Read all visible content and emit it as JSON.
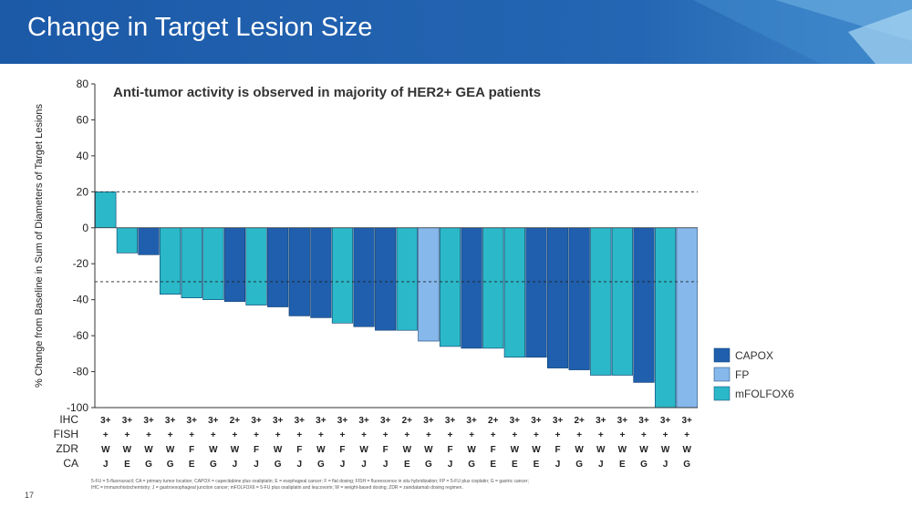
{
  "slide": {
    "title": "Change in Target Lesion Size",
    "page_number": "17",
    "footnote_line1": "5-FU = 5-fluorouracil; CA = primary tumor location; CAPOX = capecitabine plus oxaliplatin; E = esophageal cancer; F = flat dosing; FISH = fluorescence in situ hybridization; FP = 5-FU plus cisplatin; G = gastric cancer;",
    "footnote_line2": "IHC = immunohistochemistry; J = gastroesophageal junction cancer; mFOLFOX6 = 5-FU plus oxaliplatin and leucovorin; W = weight-based dosing; ZDR = zanidatamab dosing regimen."
  },
  "chart_data": {
    "type": "bar",
    "title": "Anti-tumor activity is observed in majority of HER2+ GEA patients",
    "ylabel": "% Change from Baseline in Sum of Diameters of Target Lesions",
    "xlabel": "",
    "ylim": [
      -100,
      80
    ],
    "yticks": [
      80,
      60,
      40,
      20,
      0,
      -20,
      -40,
      -60,
      -80,
      -100
    ],
    "reference_lines": [
      20,
      -30
    ],
    "colors": {
      "CAPOX": "#1f5fad",
      "FP": "#86b8ec",
      "mFOLFOX6": "#2bb8c8"
    },
    "legend": [
      "CAPOX",
      "FP",
      "mFOLFOX6"
    ],
    "legend_position": "bottom-right",
    "bars": [
      {
        "value": 20,
        "regimen": "mFOLFOX6",
        "IHC": "3+",
        "FISH": "+",
        "ZDR": "W",
        "CA": "J"
      },
      {
        "value": -14,
        "regimen": "mFOLFOX6",
        "IHC": "3+",
        "FISH": "+",
        "ZDR": "W",
        "CA": "E"
      },
      {
        "value": -15,
        "regimen": "CAPOX",
        "IHC": "3+",
        "FISH": "+",
        "ZDR": "W",
        "CA": "G"
      },
      {
        "value": -37,
        "regimen": "mFOLFOX6",
        "IHC": "3+",
        "FISH": "+",
        "ZDR": "W",
        "CA": "G"
      },
      {
        "value": -39,
        "regimen": "mFOLFOX6",
        "IHC": "3+",
        "FISH": "+",
        "ZDR": "F",
        "CA": "E"
      },
      {
        "value": -40,
        "regimen": "mFOLFOX6",
        "IHC": "3+",
        "FISH": "+",
        "ZDR": "W",
        "CA": "G"
      },
      {
        "value": -41,
        "regimen": "CAPOX",
        "IHC": "2+",
        "FISH": "+",
        "ZDR": "W",
        "CA": "J"
      },
      {
        "value": -43,
        "regimen": "mFOLFOX6",
        "IHC": "3+",
        "FISH": "+",
        "ZDR": "F",
        "CA": "J"
      },
      {
        "value": -44,
        "regimen": "CAPOX",
        "IHC": "3+",
        "FISH": "+",
        "ZDR": "W",
        "CA": "G"
      },
      {
        "value": -49,
        "regimen": "CAPOX",
        "IHC": "3+",
        "FISH": "+",
        "ZDR": "F",
        "CA": "J"
      },
      {
        "value": -50,
        "regimen": "CAPOX",
        "IHC": "3+",
        "FISH": "+",
        "ZDR": "W",
        "CA": "G"
      },
      {
        "value": -53,
        "regimen": "mFOLFOX6",
        "IHC": "3+",
        "FISH": "+",
        "ZDR": "F",
        "CA": "J"
      },
      {
        "value": -55,
        "regimen": "CAPOX",
        "IHC": "3+",
        "FISH": "+",
        "ZDR": "W",
        "CA": "J"
      },
      {
        "value": -57,
        "regimen": "CAPOX",
        "IHC": "3+",
        "FISH": "+",
        "ZDR": "F",
        "CA": "J"
      },
      {
        "value": -57,
        "regimen": "mFOLFOX6",
        "IHC": "2+",
        "FISH": "+",
        "ZDR": "W",
        "CA": "E"
      },
      {
        "value": -63,
        "regimen": "FP",
        "IHC": "3+",
        "FISH": "+",
        "ZDR": "W",
        "CA": "G"
      },
      {
        "value": -66,
        "regimen": "mFOLFOX6",
        "IHC": "3+",
        "FISH": "+",
        "ZDR": "F",
        "CA": "J"
      },
      {
        "value": -67,
        "regimen": "CAPOX",
        "IHC": "3+",
        "FISH": "+",
        "ZDR": "W",
        "CA": "G"
      },
      {
        "value": -67,
        "regimen": "mFOLFOX6",
        "IHC": "2+",
        "FISH": "+",
        "ZDR": "F",
        "CA": "E"
      },
      {
        "value": -72,
        "regimen": "mFOLFOX6",
        "IHC": "3+",
        "FISH": "+",
        "ZDR": "W",
        "CA": "E"
      },
      {
        "value": -72,
        "regimen": "CAPOX",
        "IHC": "3+",
        "FISH": "+",
        "ZDR": "W",
        "CA": "E"
      },
      {
        "value": -78,
        "regimen": "CAPOX",
        "IHC": "3+",
        "FISH": "+",
        "ZDR": "F",
        "CA": "J"
      },
      {
        "value": -79,
        "regimen": "CAPOX",
        "IHC": "2+",
        "FISH": "+",
        "ZDR": "W",
        "CA": "G"
      },
      {
        "value": -82,
        "regimen": "mFOLFOX6",
        "IHC": "3+",
        "FISH": "+",
        "ZDR": "W",
        "CA": "J"
      },
      {
        "value": -82,
        "regimen": "mFOLFOX6",
        "IHC": "3+",
        "FISH": "+",
        "ZDR": "W",
        "CA": "E"
      },
      {
        "value": -86,
        "regimen": "CAPOX",
        "IHC": "3+",
        "FISH": "+",
        "ZDR": "W",
        "CA": "G"
      },
      {
        "value": -100,
        "regimen": "mFOLFOX6",
        "IHC": "3+",
        "FISH": "+",
        "ZDR": "W",
        "CA": "J"
      },
      {
        "value": -100,
        "regimen": "FP",
        "IHC": "3+",
        "FISH": "+",
        "ZDR": "W",
        "CA": "G"
      }
    ],
    "row_labels": [
      "IHC",
      "FISH",
      "ZDR",
      "CA"
    ]
  }
}
